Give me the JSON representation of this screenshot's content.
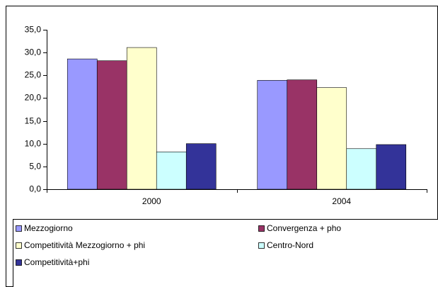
{
  "chart_data": {
    "type": "bar",
    "categories": [
      "2000",
      "2004"
    ],
    "series": [
      {
        "name": "Mezzogiorno",
        "color": "#9999ff",
        "values": [
          28.6,
          23.9
        ]
      },
      {
        "name": "Convergenza + pho",
        "color": "#993366",
        "values": [
          28.2,
          24.0
        ]
      },
      {
        "name": "Competitività Mezzogiorno + phi",
        "color": "#ffffcc",
        "values": [
          31.1,
          22.3
        ]
      },
      {
        "name": "Centro-Nord",
        "color": "#ccffff",
        "values": [
          8.2,
          8.9
        ]
      },
      {
        "name": "Competitività+phi",
        "color": "#333399",
        "values": [
          10.0,
          9.8
        ]
      }
    ],
    "ylim": [
      0,
      35
    ],
    "yticks": [
      {
        "value": 0,
        "label": "0,0"
      },
      {
        "value": 5,
        "label": "5,0"
      },
      {
        "value": 10,
        "label": "10,0"
      },
      {
        "value": 15,
        "label": "15,0"
      },
      {
        "value": 20,
        "label": "20,0"
      },
      {
        "value": 25,
        "label": "25,0"
      },
      {
        "value": 30,
        "label": "30,0"
      },
      {
        "value": 35,
        "label": "35,0"
      }
    ],
    "grid": false,
    "legend": "bottom"
  }
}
